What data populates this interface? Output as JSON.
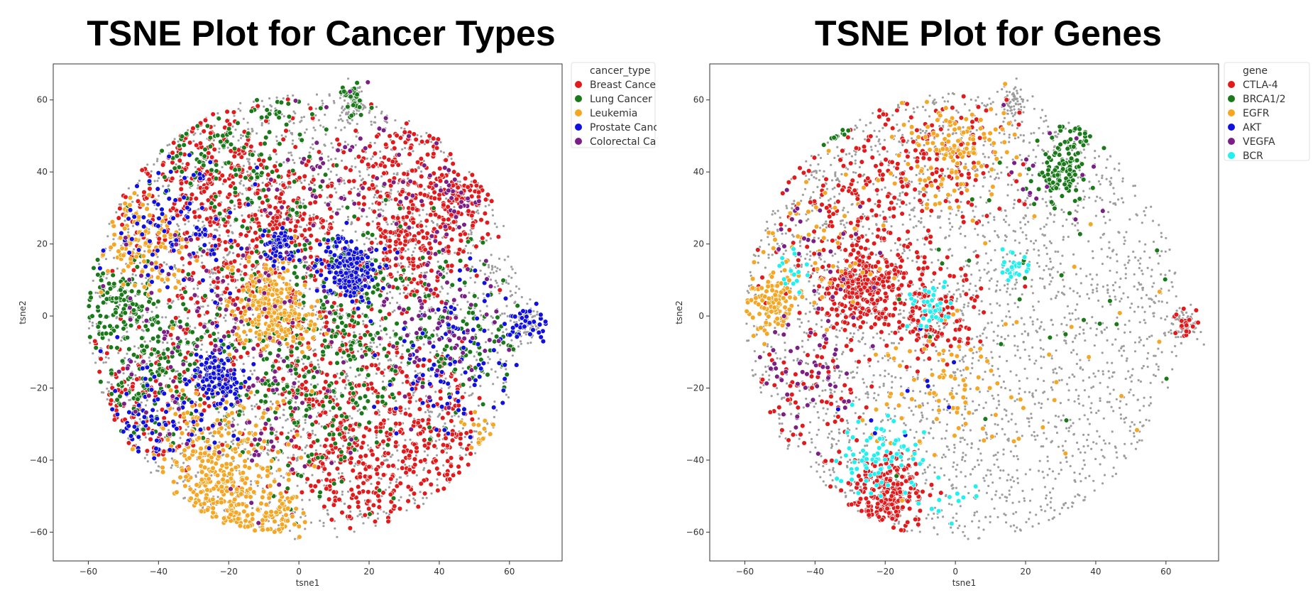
{
  "chart_data": [
    {
      "type": "scatter",
      "title": "TSNE Plot for Cancer Types",
      "xlabel": "tsne1",
      "ylabel": "tsne2",
      "xlim": [
        -70,
        75
      ],
      "ylim": [
        -68,
        70
      ],
      "xticks": [
        -60,
        -40,
        -20,
        0,
        20,
        40,
        60
      ],
      "yticks": [
        -60,
        -40,
        -20,
        0,
        20,
        40,
        60
      ],
      "grid": false,
      "legend": {
        "title": "cancer_type",
        "placement": "outside-top-right",
        "entries": [
          {
            "label": "Breast Cancer",
            "color": "#e31a1c"
          },
          {
            "label": "Lung Cancer",
            "color": "#1a7a1a"
          },
          {
            "label": "Leukemia",
            "color": "#f5a623"
          },
          {
            "label": "Prostate Cancer",
            "color": "#1010e0"
          },
          {
            "label": "Colorectal Cancer",
            "color": "#7b1f86"
          }
        ]
      },
      "background_points_color": "#9e9e9e",
      "clusters": [
        {
          "series": "Breast Cancer",
          "x": -25,
          "y": 35,
          "spread": 14,
          "count": 420
        },
        {
          "series": "Breast Cancer",
          "x": 30,
          "y": 40,
          "spread": 9,
          "count": 180
        },
        {
          "series": "Breast Cancer",
          "x": 32,
          "y": 18,
          "spread": 8,
          "count": 150
        },
        {
          "series": "Breast Cancer",
          "x": 45,
          "y": 30,
          "spread": 6,
          "count": 120
        },
        {
          "series": "Breast Cancer",
          "x": 35,
          "y": -35,
          "spread": 12,
          "count": 260
        },
        {
          "series": "Breast Cancer",
          "x": 10,
          "y": -20,
          "spread": 14,
          "count": 260
        },
        {
          "series": "Breast Cancer",
          "x": -45,
          "y": -25,
          "spread": 10,
          "count": 200
        },
        {
          "series": "Breast Cancer",
          "x": 15,
          "y": -45,
          "spread": 8,
          "count": 120
        },
        {
          "series": "Breast Cancer",
          "x": 0,
          "y": 25,
          "spread": 8,
          "count": 110
        },
        {
          "series": "Breast Cancer",
          "x": -15,
          "y": 5,
          "spread": 12,
          "count": 160
        },
        {
          "series": "Lung Cancer",
          "x": -52,
          "y": 3,
          "spread": 6,
          "count": 130
        },
        {
          "series": "Lung Cancer",
          "x": -40,
          "y": -15,
          "spread": 10,
          "count": 180
        },
        {
          "series": "Lung Cancer",
          "x": 0,
          "y": -20,
          "spread": 14,
          "count": 200
        },
        {
          "series": "Lung Cancer",
          "x": 15,
          "y": 5,
          "spread": 12,
          "count": 160
        },
        {
          "series": "Lung Cancer",
          "x": -20,
          "y": 45,
          "spread": 14,
          "count": 200
        },
        {
          "series": "Lung Cancer",
          "x": 45,
          "y": -5,
          "spread": 10,
          "count": 120
        },
        {
          "series": "Lung Cancer",
          "x": 16,
          "y": 60,
          "spread": 2,
          "count": 30
        },
        {
          "series": "Leukemia",
          "x": -8,
          "y": 2,
          "spread": 6,
          "count": 260
        },
        {
          "series": "Leukemia",
          "x": -25,
          "y": -42,
          "spread": 10,
          "count": 320
        },
        {
          "series": "Leukemia",
          "x": -22,
          "y": -55,
          "spread": 6,
          "count": 140
        },
        {
          "series": "Leukemia",
          "x": -45,
          "y": 20,
          "spread": 6,
          "count": 130
        },
        {
          "series": "Leukemia",
          "x": -5,
          "y": -55,
          "spread": 4,
          "count": 50
        },
        {
          "series": "Leukemia",
          "x": 55,
          "y": -35,
          "spread": 4,
          "count": 50
        },
        {
          "series": "Prostate Cancer",
          "x": 15,
          "y": 13,
          "spread": 4,
          "count": 200
        },
        {
          "series": "Prostate Cancer",
          "x": -23,
          "y": -17,
          "spread": 3.5,
          "count": 130
        },
        {
          "series": "Prostate Cancer",
          "x": -6,
          "y": 19,
          "spread": 2.5,
          "count": 60
        },
        {
          "series": "Prostate Cancer",
          "x": -35,
          "y": 25,
          "spread": 10,
          "count": 110
        },
        {
          "series": "Prostate Cancer",
          "x": 45,
          "y": -10,
          "spread": 10,
          "count": 100
        },
        {
          "series": "Prostate Cancer",
          "x": 65,
          "y": -2,
          "spread": 3,
          "count": 40
        },
        {
          "series": "Prostate Cancer",
          "x": -40,
          "y": -30,
          "spread": 8,
          "count": 90
        },
        {
          "series": "Colorectal Cancer",
          "x": 40,
          "y": -2,
          "spread": 10,
          "count": 90
        },
        {
          "series": "Colorectal Cancer",
          "x": -30,
          "y": 0,
          "spread": 14,
          "count": 90
        },
        {
          "series": "Colorectal Cancer",
          "x": 10,
          "y": 35,
          "spread": 14,
          "count": 70
        },
        {
          "series": "Colorectal Cancer",
          "x": 45,
          "y": 35,
          "spread": 6,
          "count": 40
        },
        {
          "series": "Colorectal Cancer",
          "x": -10,
          "y": -25,
          "spread": 12,
          "count": 60
        }
      ]
    },
    {
      "type": "scatter",
      "title": "TSNE Plot for Genes",
      "xlabel": "tsne1",
      "ylabel": "tsne2",
      "xlim": [
        -70,
        75
      ],
      "ylim": [
        -68,
        70
      ],
      "xticks": [
        -60,
        -40,
        -20,
        0,
        20,
        40,
        60
      ],
      "yticks": [
        -60,
        -40,
        -20,
        0,
        20,
        40,
        60
      ],
      "grid": false,
      "legend": {
        "title": "gene",
        "placement": "outside-top-right",
        "entries": [
          {
            "label": "CTLA-4",
            "color": "#e31a1c"
          },
          {
            "label": "BRCA1/2",
            "color": "#1a7a1a"
          },
          {
            "label": "EGFR",
            "color": "#f5a623"
          },
          {
            "label": "AKT",
            "color": "#1010e0"
          },
          {
            "label": "VEGFA",
            "color": "#7b1f86"
          },
          {
            "label": "BCR",
            "color": "#1ff0f0"
          }
        ]
      },
      "background_points_color": "#9e9e9e",
      "clusters": [
        {
          "series": "CTLA-4",
          "x": -25,
          "y": 8,
          "spread": 6,
          "count": 320
        },
        {
          "series": "CTLA-4",
          "x": -20,
          "y": -50,
          "spread": 6,
          "count": 260
        },
        {
          "series": "CTLA-4",
          "x": -5,
          "y": 0,
          "spread": 6,
          "count": 120
        },
        {
          "series": "CTLA-4",
          "x": -25,
          "y": 35,
          "spread": 14,
          "count": 240
        },
        {
          "series": "CTLA-4",
          "x": 0,
          "y": 45,
          "spread": 8,
          "count": 80
        },
        {
          "series": "CTLA-4",
          "x": -40,
          "y": -20,
          "spread": 10,
          "count": 80
        },
        {
          "series": "CTLA-4",
          "x": 65,
          "y": -2,
          "spread": 2,
          "count": 20
        },
        {
          "series": "BRCA1/2",
          "x": 30,
          "y": 40,
          "spread": 4,
          "count": 110
        },
        {
          "series": "BRCA1/2",
          "x": 35,
          "y": 52,
          "spread": 3,
          "count": 50
        },
        {
          "series": "BRCA1/2",
          "x": -35,
          "y": 52,
          "spread": 2,
          "count": 20
        },
        {
          "series": "BRCA1/2",
          "x": 20,
          "y": 10,
          "spread": 20,
          "count": 30
        },
        {
          "series": "EGFR",
          "x": -52,
          "y": 3,
          "spread": 4,
          "count": 100
        },
        {
          "series": "EGFR",
          "x": 0,
          "y": 45,
          "spread": 7,
          "count": 140
        },
        {
          "series": "EGFR",
          "x": -5,
          "y": -20,
          "spread": 10,
          "count": 80
        },
        {
          "series": "EGFR",
          "x": -40,
          "y": 20,
          "spread": 12,
          "count": 70
        },
        {
          "series": "EGFR",
          "x": 30,
          "y": 0,
          "spread": 20,
          "count": 30
        },
        {
          "series": "AKT",
          "x": -10,
          "y": -25,
          "spread": 10,
          "count": 10
        },
        {
          "series": "VEGFA",
          "x": -45,
          "y": -15,
          "spread": 8,
          "count": 60
        },
        {
          "series": "VEGFA",
          "x": -40,
          "y": 20,
          "spread": 10,
          "count": 30
        },
        {
          "series": "VEGFA",
          "x": 30,
          "y": 40,
          "spread": 12,
          "count": 20
        },
        {
          "series": "BCR",
          "x": -25,
          "y": -40,
          "spread": 5,
          "count": 60
        },
        {
          "series": "BCR",
          "x": -7,
          "y": 3,
          "spread": 3,
          "count": 40
        },
        {
          "series": "BCR",
          "x": 17,
          "y": 13,
          "spread": 2,
          "count": 25
        },
        {
          "series": "BCR",
          "x": -48,
          "y": 13,
          "spread": 3,
          "count": 15
        },
        {
          "series": "BCR",
          "x": -15,
          "y": -35,
          "spread": 3,
          "count": 15
        },
        {
          "series": "BCR",
          "x": -5,
          "y": -50,
          "spread": 5,
          "count": 15
        }
      ]
    }
  ]
}
